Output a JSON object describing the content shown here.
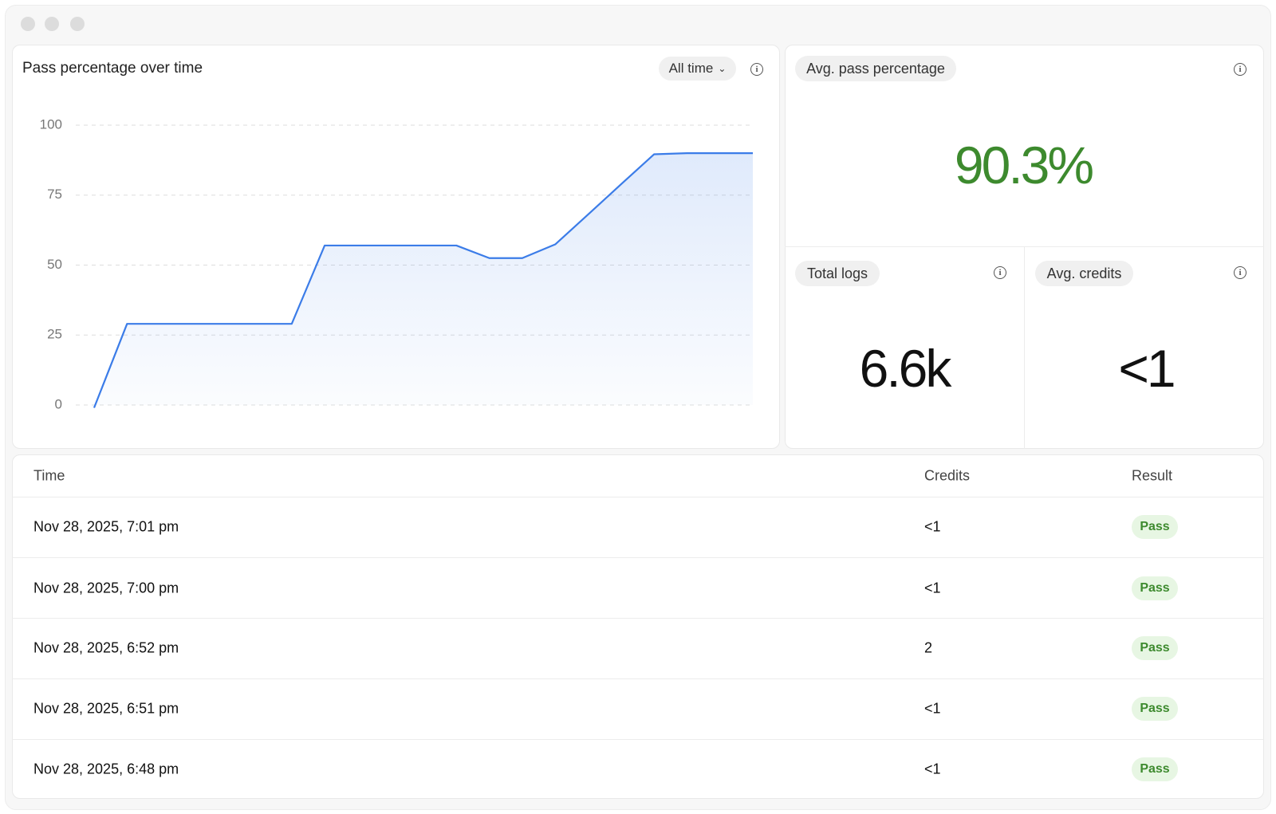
{
  "chart_data": {
    "type": "line",
    "title": "Pass percentage over time",
    "range_selector": "All time",
    "categories": [
      null,
      null,
      null,
      null,
      null,
      null,
      null,
      null,
      null,
      null,
      null,
      null,
      null,
      null,
      null,
      null,
      null,
      null,
      null,
      null,
      null
    ],
    "values": [
      -1,
      29,
      29,
      29,
      29,
      29,
      29,
      57,
      57,
      57,
      57,
      57,
      52.5,
      52.5,
      57.4,
      68.1,
      78.9,
      89.6,
      90,
      90,
      90
    ],
    "color": "#3b7ce8",
    "ylim": [
      0,
      100
    ],
    "yticks": [
      0,
      25,
      50,
      75,
      100
    ],
    "grid": true
  },
  "stats": [
    {
      "label": "Avg. pass percentage",
      "value": "90.3%"
    },
    {
      "label": "Total logs",
      "value": "6.6k"
    },
    {
      "label": "Avg. credits",
      "value": "<1"
    }
  ],
  "table": {
    "columns": [
      "Time",
      "Credits",
      "Result"
    ],
    "rows": [
      [
        "Nov 28, 2025, 7:01 pm",
        "<1",
        "Pass"
      ],
      [
        "Nov 28, 2025, 7:00 pm",
        "<1",
        "Pass"
      ],
      [
        "Nov 28, 2025, 6:52 pm",
        "2",
        "Pass"
      ],
      [
        "Nov 28, 2025, 6:51 pm",
        "<1",
        "Pass"
      ],
      [
        "Nov 28, 2025, 6:48 pm",
        "<1",
        "Pass"
      ]
    ]
  }
}
